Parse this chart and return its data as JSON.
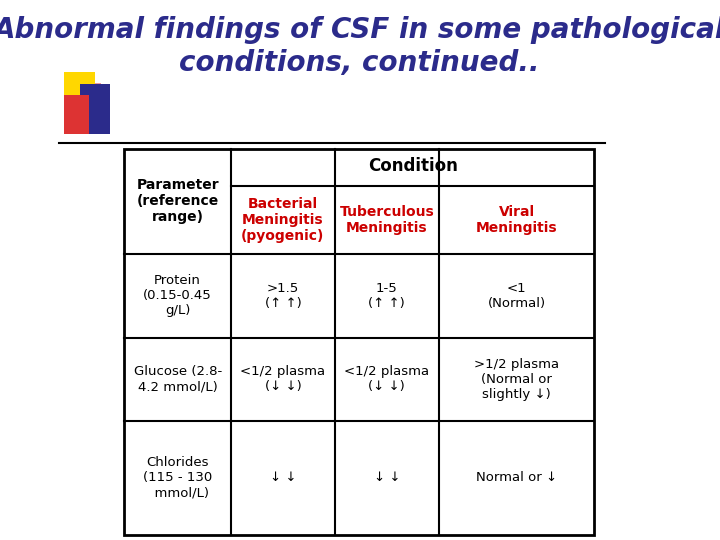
{
  "title_line1": "Abnormal findings of CSF in some pathological",
  "title_line2": "conditions, continued..",
  "title_color": "#2B2B8B",
  "title_fontsize": 20,
  "bg_color": "#FFFFFF",
  "header_condition": "Condition",
  "header_param": "Parameter\n(reference\nrange)",
  "col_headers": [
    "Bacterial\nMeningitis\n(pyogenic)",
    "Tuberculous\nMeningitis",
    "Viral\nMeningitis"
  ],
  "col_header_color": "#CC0000",
  "rows": [
    {
      "param": "Protein\n(0.15-0.45\ng/L)",
      "values": [
        ">1.5\n(↑ ↑)",
        "1-5\n(↑ ↑)",
        "<1\n(Normal)"
      ]
    },
    {
      "param": "Glucose (2.8-\n4.2 mmol/L)",
      "values": [
        "<1/2 plasma\n(↓ ↓)",
        "<1/2 plasma\n(↓ ↓)",
        ">1/2 plasma\n(Normal or\nslightly ↓)"
      ]
    },
    {
      "param": "Chlorides\n(115 - 130\n  mmol/L)",
      "values": [
        "↓ ↓",
        "↓ ↓",
        "Normal or ↓"
      ]
    }
  ]
}
